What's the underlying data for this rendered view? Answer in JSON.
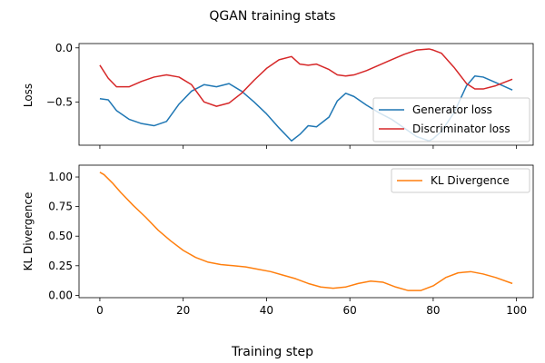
{
  "figure": {
    "title": "QGAN training stats",
    "xlabel": "Training step"
  },
  "colors": {
    "generator": "#1f77b4",
    "discriminator": "#d62728",
    "kl": "#ff7f0e",
    "axes": "#000000",
    "background": "#ffffff"
  },
  "chart_data": [
    {
      "type": "line",
      "ylabel": "Loss",
      "xlim": [
        -5,
        104
      ],
      "ylim": [
        -0.9,
        0.04
      ],
      "xticks": [
        0,
        20,
        40,
        60,
        80,
        100
      ],
      "yticks": [
        0.0,
        -0.5
      ],
      "ytick_labels": [
        "0.0",
        "−0.5"
      ],
      "show_xtick_labels": false,
      "grid": false,
      "legend_position": "lower-right",
      "x": [
        0,
        2,
        4,
        7,
        10,
        13,
        16,
        19,
        22,
        25,
        28,
        31,
        34,
        37,
        40,
        43,
        46,
        48,
        50,
        52,
        55,
        57,
        59,
        61,
        64,
        67,
        70,
        73,
        76,
        79,
        80,
        82,
        85,
        88,
        90,
        92,
        95,
        99
      ],
      "series": [
        {
          "name": "Generator loss",
          "color": "#1f77b4",
          "values": [
            -0.47,
            -0.48,
            -0.58,
            -0.66,
            -0.7,
            -0.72,
            -0.68,
            -0.52,
            -0.4,
            -0.34,
            -0.36,
            -0.33,
            -0.4,
            -0.5,
            -0.61,
            -0.74,
            -0.86,
            -0.8,
            -0.72,
            -0.73,
            -0.64,
            -0.49,
            -0.42,
            -0.45,
            -0.53,
            -0.6,
            -0.66,
            -0.74,
            -0.82,
            -0.86,
            -0.84,
            -0.77,
            -0.6,
            -0.35,
            -0.26,
            -0.27,
            -0.32,
            -0.39
          ]
        },
        {
          "name": "Discriminator loss",
          "color": "#d62728",
          "values": [
            -0.16,
            -0.28,
            -0.36,
            -0.36,
            -0.31,
            -0.27,
            -0.25,
            -0.27,
            -0.34,
            -0.5,
            -0.54,
            -0.51,
            -0.42,
            -0.3,
            -0.19,
            -0.11,
            -0.08,
            -0.15,
            -0.16,
            -0.15,
            -0.2,
            -0.25,
            -0.26,
            -0.25,
            -0.21,
            -0.16,
            -0.11,
            -0.06,
            -0.02,
            -0.01,
            -0.02,
            -0.05,
            -0.18,
            -0.33,
            -0.38,
            -0.38,
            -0.35,
            -0.29
          ]
        }
      ]
    },
    {
      "type": "line",
      "ylabel": "KL Divergence",
      "xlim": [
        -5,
        104
      ],
      "ylim": [
        -0.02,
        1.1
      ],
      "xticks": [
        0,
        20,
        40,
        60,
        80,
        100
      ],
      "yticks": [
        0.0,
        0.25,
        0.5,
        0.75,
        1.0
      ],
      "ytick_labels": [
        "0.00",
        "0.25",
        "0.50",
        "0.75",
        "1.00"
      ],
      "show_xtick_labels": true,
      "grid": false,
      "legend_position": "upper-right",
      "x": [
        0,
        1,
        3,
        5,
        8,
        11,
        14,
        17,
        20,
        23,
        26,
        29,
        32,
        35,
        38,
        41,
        44,
        47,
        50,
        53,
        56,
        59,
        62,
        65,
        68,
        71,
        74,
        77,
        80,
        83,
        86,
        89,
        92,
        95,
        99
      ],
      "series": [
        {
          "name": "KL Divergence",
          "color": "#ff7f0e",
          "values": [
            1.04,
            1.02,
            0.95,
            0.87,
            0.76,
            0.66,
            0.55,
            0.46,
            0.38,
            0.32,
            0.28,
            0.26,
            0.25,
            0.24,
            0.22,
            0.2,
            0.17,
            0.14,
            0.1,
            0.07,
            0.06,
            0.07,
            0.1,
            0.12,
            0.11,
            0.07,
            0.04,
            0.04,
            0.08,
            0.15,
            0.19,
            0.2,
            0.18,
            0.15,
            0.1
          ]
        }
      ]
    }
  ]
}
